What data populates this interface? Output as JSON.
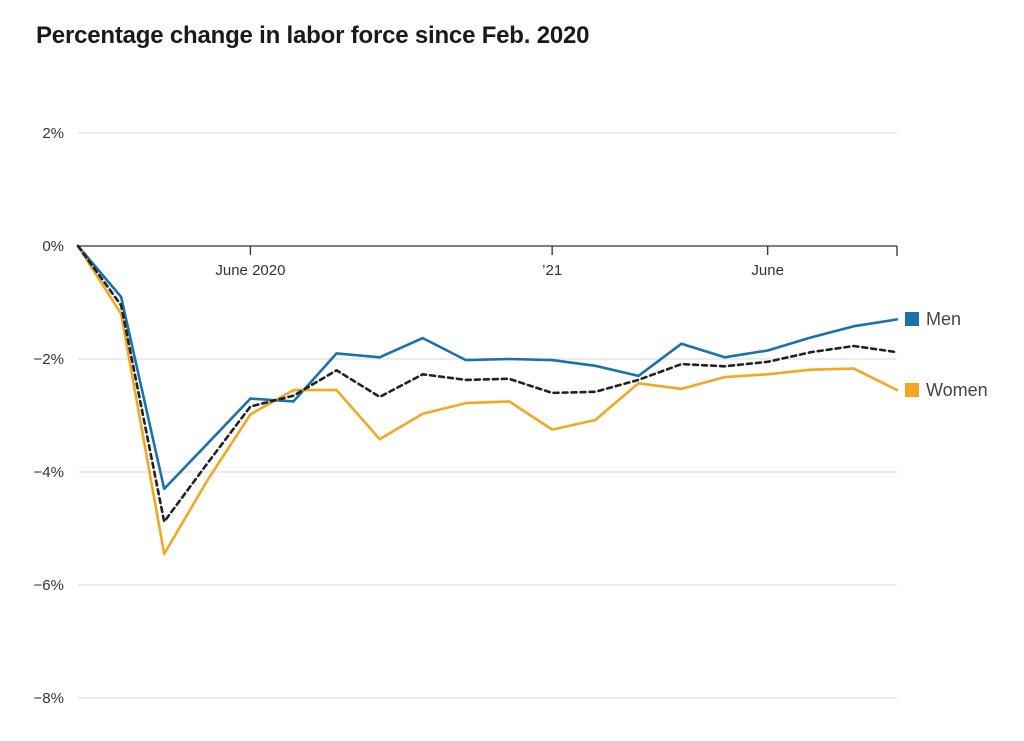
{
  "chart_data": {
    "type": "line",
    "title": "Percentage change in labor force since Feb. 2020",
    "xlabel": "",
    "ylabel": "",
    "ylim": [
      -8,
      2
    ],
    "yticks": [
      2,
      0,
      -2,
      -4,
      -6,
      -8
    ],
    "ytick_labels": [
      "2%",
      "0%",
      "−2%",
      "−4%",
      "−6%",
      "−8%"
    ],
    "x": [
      "2020-02",
      "2020-03",
      "2020-04",
      "2020-05",
      "2020-06",
      "2020-07",
      "2020-08",
      "2020-09",
      "2020-10",
      "2020-11",
      "2020-12",
      "2021-01",
      "2021-02",
      "2021-03",
      "2021-04",
      "2021-05",
      "2021-06",
      "2021-07",
      "2021-08",
      "2021-09"
    ],
    "xticks": [
      {
        "x": "2020-06",
        "label": "June 2020"
      },
      {
        "x": "2021-01",
        "label": "’21"
      },
      {
        "x": "2021-06",
        "label": "June"
      }
    ],
    "grid": true,
    "legend": "right, at line ends",
    "series": [
      {
        "name": "Men",
        "color": "#1a72aa",
        "dash": false,
        "values": [
          0,
          -0.9,
          -4.3,
          -3.5,
          -2.7,
          -2.75,
          -1.9,
          -1.97,
          -1.63,
          -2.02,
          -2.0,
          -2.02,
          -2.12,
          -2.3,
          -1.73,
          -1.97,
          -1.85,
          -1.62,
          -1.42,
          -1.3
        ]
      },
      {
        "name": "Women",
        "color": "#f5a623",
        "dash": false,
        "values": [
          0,
          -1.2,
          -5.45,
          -4.15,
          -2.98,
          -2.55,
          -2.55,
          -3.42,
          -2.97,
          -2.78,
          -2.75,
          -3.25,
          -3.08,
          -2.43,
          -2.53,
          -2.32,
          -2.27,
          -2.19,
          -2.17,
          -2.55
        ]
      },
      {
        "name": "",
        "color": "#222222",
        "dash": true,
        "values": [
          0,
          -1.05,
          -4.88,
          -3.85,
          -2.84,
          -2.65,
          -2.2,
          -2.67,
          -2.27,
          -2.37,
          -2.35,
          -2.6,
          -2.58,
          -2.37,
          -2.09,
          -2.13,
          -2.05,
          -1.88,
          -1.77,
          -1.88
        ]
      }
    ]
  }
}
